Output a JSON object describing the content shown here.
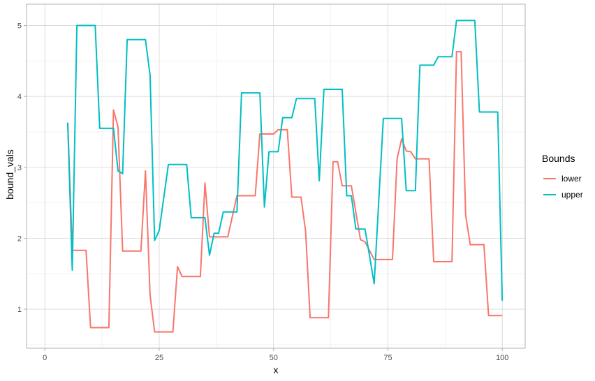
{
  "chart_data": {
    "type": "line",
    "title": "",
    "xlabel": "x",
    "ylabel": "bound_vals",
    "xlim": [
      -4,
      105
    ],
    "ylim": [
      0.45,
      5.3
    ],
    "x_ticks": [
      0,
      25,
      50,
      75,
      100
    ],
    "x_tick_labels": [
      "0",
      "25",
      "50",
      "75",
      "100"
    ],
    "y_ticks": [
      1,
      2,
      3,
      4,
      5
    ],
    "y_tick_labels": [
      "1",
      "2",
      "3",
      "4",
      "5"
    ],
    "grid": true,
    "legend": {
      "title": "Bounds",
      "placement": "right"
    },
    "series": [
      {
        "name": "lower",
        "color": "#F8766D",
        "points": [
          [
            5,
            3.63
          ],
          [
            6,
            1.83
          ],
          [
            9,
            1.83
          ],
          [
            10,
            0.74
          ],
          [
            14,
            0.74
          ],
          [
            15,
            3.81
          ],
          [
            16,
            3.57
          ],
          [
            17,
            1.82
          ],
          [
            21,
            1.82
          ],
          [
            22,
            2.95
          ],
          [
            23,
            1.2
          ],
          [
            24,
            0.68
          ],
          [
            28,
            0.68
          ],
          [
            29,
            1.6
          ],
          [
            30,
            1.46
          ],
          [
            34,
            1.46
          ],
          [
            35,
            2.78
          ],
          [
            36,
            2.02
          ],
          [
            40,
            2.02
          ],
          [
            42,
            2.6
          ],
          [
            46,
            2.6
          ],
          [
            47,
            3.47
          ],
          [
            50,
            3.47
          ],
          [
            51,
            3.53
          ],
          [
            53,
            3.53
          ],
          [
            54,
            2.58
          ],
          [
            56,
            2.58
          ],
          [
            57,
            2.1
          ],
          [
            58,
            0.88
          ],
          [
            62,
            0.88
          ],
          [
            63,
            3.08
          ],
          [
            64,
            3.08
          ],
          [
            65,
            2.74
          ],
          [
            67,
            2.74
          ],
          [
            69,
            1.98
          ],
          [
            70,
            1.95
          ],
          [
            72,
            1.7
          ],
          [
            76,
            1.7
          ],
          [
            77,
            3.12
          ],
          [
            78,
            3.4
          ],
          [
            79,
            3.23
          ],
          [
            80,
            3.22
          ],
          [
            81,
            3.12
          ],
          [
            84,
            3.12
          ],
          [
            85,
            1.67
          ],
          [
            89,
            1.67
          ],
          [
            90,
            4.63
          ],
          [
            91,
            4.63
          ],
          [
            92,
            2.32
          ],
          [
            93,
            1.91
          ],
          [
            96,
            1.91
          ],
          [
            97,
            0.91
          ],
          [
            100,
            0.91
          ]
        ]
      },
      {
        "name": "upper",
        "color": "#00BFC4",
        "points": [
          [
            5,
            3.63
          ],
          [
            6,
            1.55
          ],
          [
            7,
            5.0
          ],
          [
            11,
            5.0
          ],
          [
            12,
            3.55
          ],
          [
            15,
            3.55
          ],
          [
            16,
            2.95
          ],
          [
            17,
            2.91
          ],
          [
            18,
            4.8
          ],
          [
            22,
            4.8
          ],
          [
            23,
            4.3
          ],
          [
            24,
            1.97
          ],
          [
            25,
            2.11
          ],
          [
            27,
            3.04
          ],
          [
            31,
            3.04
          ],
          [
            32,
            2.29
          ],
          [
            35,
            2.29
          ],
          [
            36,
            1.76
          ],
          [
            37,
            2.07
          ],
          [
            38,
            2.07
          ],
          [
            39,
            2.37
          ],
          [
            42,
            2.37
          ],
          [
            43,
            4.05
          ],
          [
            47,
            4.05
          ],
          [
            48,
            2.44
          ],
          [
            49,
            3.22
          ],
          [
            51,
            3.22
          ],
          [
            52,
            3.7
          ],
          [
            54,
            3.7
          ],
          [
            55,
            3.97
          ],
          [
            59,
            3.97
          ],
          [
            60,
            2.81
          ],
          [
            61,
            4.1
          ],
          [
            65,
            4.1
          ],
          [
            66,
            2.6
          ],
          [
            67,
            2.6
          ],
          [
            68,
            2.13
          ],
          [
            70,
            2.13
          ],
          [
            72,
            1.36
          ],
          [
            74,
            3.69
          ],
          [
            78,
            3.69
          ],
          [
            79,
            2.67
          ],
          [
            81,
            2.67
          ],
          [
            82,
            4.44
          ],
          [
            85,
            4.44
          ],
          [
            86,
            4.56
          ],
          [
            89,
            4.56
          ],
          [
            90,
            5.07
          ],
          [
            94,
            5.07
          ],
          [
            95,
            3.78
          ],
          [
            99,
            3.78
          ],
          [
            100,
            1.12
          ]
        ]
      }
    ]
  }
}
